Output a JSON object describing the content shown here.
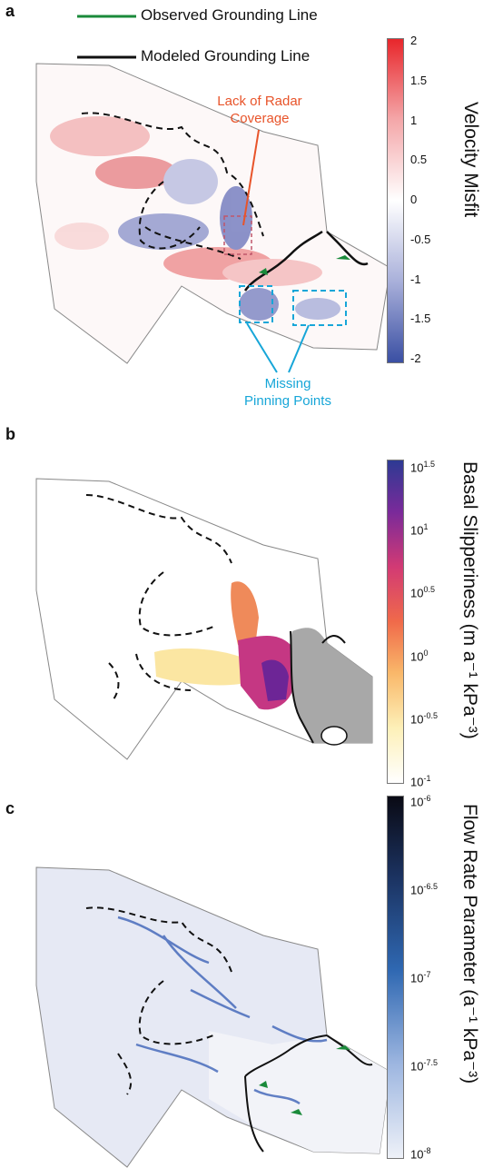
{
  "panels": {
    "a": {
      "letter": "a",
      "legend": {
        "observed": "Observed Grounding Line",
        "modeled": "Modeled Grounding Line",
        "observed_color": "#1a8a3a",
        "modeled_color": "#111111"
      },
      "annotation_radar": [
        "Lack of Radar",
        "Coverage"
      ],
      "annotation_pinning": [
        "Missing",
        "Pinning Points"
      ],
      "annotation_radar_color": "#e8542a",
      "annotation_pinning_color": "#17a6d8",
      "colorbar_label": "Velocity Misfit",
      "ticks": [
        "2",
        "1.5",
        "1",
        "0.5",
        "0",
        "-0.5",
        "-1",
        "-1.5",
        "-2"
      ],
      "colors": [
        "#e8262b",
        "#ffffff",
        "#3a4fa3"
      ]
    },
    "b": {
      "letter": "b",
      "colorbar_label": "Basal Slipperiness (m a⁻¹ kPa⁻³)",
      "ticks": [
        {
          "base": "10",
          "exp": "1.5"
        },
        {
          "base": "10",
          "exp": "1"
        },
        {
          "base": "10",
          "exp": "0.5"
        },
        {
          "base": "10",
          "exp": "0"
        },
        {
          "base": "10",
          "exp": "-0.5"
        },
        {
          "base": "10",
          "exp": "-1"
        }
      ],
      "colors": [
        "#2d3a93",
        "#7a2a9a",
        "#d23a74",
        "#f06a4a",
        "#f9b86a",
        "#fdf0b8",
        "#ffffff"
      ],
      "grounded_color": "#a8a8a8"
    },
    "c": {
      "letter": "c",
      "colorbar_label": "Flow Rate Parameter (a⁻¹ kPa⁻³)",
      "ticks": [
        {
          "base": "10",
          "exp": "-6"
        },
        {
          "base": "10",
          "exp": "-6.5"
        },
        {
          "base": "10",
          "exp": "-7"
        },
        {
          "base": "10",
          "exp": "-7.5"
        },
        {
          "base": "10",
          "exp": "-8"
        }
      ],
      "colors": [
        "#0a0a14",
        "#1b3260",
        "#2f68b2",
        "#9db6e0",
        "#eef1f8"
      ],
      "background_color": "#e6e9f4"
    }
  }
}
